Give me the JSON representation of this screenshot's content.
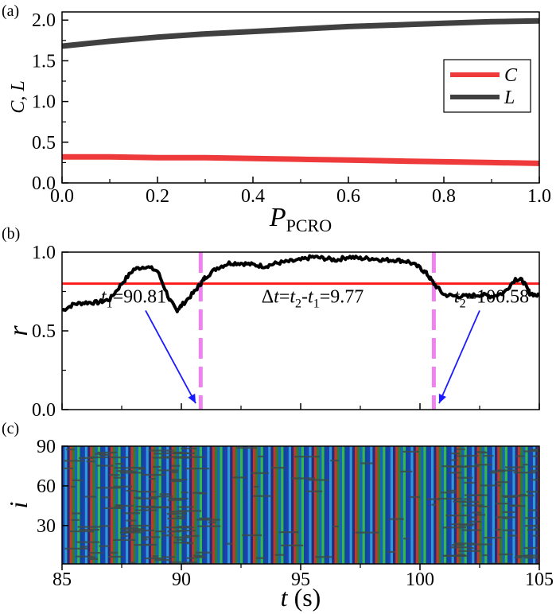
{
  "panels": {
    "a": {
      "label": "(a)",
      "chart_data": {
        "type": "line",
        "xlabel": {
          "main": "P",
          "sub": "PCRO"
        },
        "ylabel": "C, L",
        "xlim": [
          0.0,
          1.0
        ],
        "ylim": [
          0.0,
          2.1
        ],
        "xticks": [
          "0.0",
          "0.2",
          "0.4",
          "0.6",
          "0.8",
          "1.0"
        ],
        "yticks": [
          "0.0",
          "0.5",
          "1.0",
          "1.5",
          "2.0"
        ],
        "legend_position": "right",
        "series": [
          {
            "name": "C",
            "color": "#ee3a3a",
            "x": [
              0.0,
              0.1,
              0.2,
              0.3,
              0.4,
              0.5,
              0.6,
              0.7,
              0.8,
              0.9,
              1.0
            ],
            "y": [
              0.32,
              0.32,
              0.31,
              0.31,
              0.3,
              0.29,
              0.28,
              0.27,
              0.26,
              0.25,
              0.24
            ]
          },
          {
            "name": "L",
            "color": "#404040",
            "x": [
              0.0,
              0.1,
              0.2,
              0.3,
              0.4,
              0.5,
              0.6,
              0.7,
              0.8,
              0.9,
              1.0
            ],
            "y": [
              1.68,
              1.74,
              1.79,
              1.83,
              1.86,
              1.89,
              1.92,
              1.94,
              1.96,
              1.98,
              1.99
            ]
          }
        ]
      }
    },
    "b": {
      "label": "(b)",
      "chart_data": {
        "type": "line",
        "ylabel": "r",
        "xlim": [
          85,
          105
        ],
        "ylim": [
          0.0,
          1.0
        ],
        "yticks": [
          "0.0",
          "0.5",
          "1.0"
        ],
        "threshold": {
          "value": 0.8,
          "color": "#ff1a1a"
        },
        "vlines": [
          {
            "x": 90.81,
            "color": "#ee82ee"
          },
          {
            "x": 100.58,
            "color": "#ee82ee"
          }
        ],
        "series": [
          {
            "color": "#000000",
            "x": [
              85,
              85.5,
              86,
              86.5,
              87,
              87.5,
              88,
              88.5,
              89,
              89.5,
              89.8,
              90,
              90.5,
              90.81,
              91,
              91.5,
              92,
              92.5,
              93,
              93.5,
              94,
              94.5,
              95,
              95.5,
              96,
              96.5,
              97,
              97.5,
              98,
              98.5,
              99,
              99.5,
              100,
              100.3,
              100.58,
              101,
              101.5,
              102,
              102.5,
              103,
              103.5,
              104,
              104.3,
              104.6,
              105
            ],
            "y": [
              0.63,
              0.67,
              0.68,
              0.68,
              0.7,
              0.8,
              0.89,
              0.91,
              0.88,
              0.7,
              0.63,
              0.66,
              0.74,
              0.8,
              0.84,
              0.9,
              0.93,
              0.93,
              0.92,
              0.91,
              0.93,
              0.94,
              0.95,
              0.97,
              0.96,
              0.95,
              0.97,
              0.96,
              0.96,
              0.95,
              0.95,
              0.94,
              0.9,
              0.86,
              0.8,
              0.73,
              0.72,
              0.72,
              0.73,
              0.72,
              0.74,
              0.83,
              0.82,
              0.74,
              0.72
            ]
          }
        ],
        "annotations": [
          {
            "parts": [
              {
                "t": "t",
                "style": "italic"
              },
              {
                "t": "1",
                "style": "sub"
              },
              {
                "t": "=90.81",
                "style": "normal"
              }
            ],
            "x": 88.0,
            "y": 0.72,
            "arrow_to": [
              90.6,
              0.04
            ]
          },
          {
            "parts": [
              {
                "t": "Δ",
                "style": "normal"
              },
              {
                "t": "t",
                "style": "italic"
              },
              {
                "t": "=",
                "style": "normal"
              },
              {
                "t": "t",
                "style": "italic"
              },
              {
                "t": "2",
                "style": "sub"
              },
              {
                "t": "-",
                "style": "normal"
              },
              {
                "t": "t",
                "style": "italic"
              },
              {
                "t": "1",
                "style": "sub"
              },
              {
                "t": "=9.77",
                "style": "normal"
              }
            ],
            "x": 95.5,
            "y": 0.72
          },
          {
            "parts": [
              {
                "t": "t",
                "style": "italic"
              },
              {
                "t": "2",
                "style": "sub"
              },
              {
                "t": "=100.58",
                "style": "normal"
              }
            ],
            "x": 103.0,
            "y": 0.72,
            "arrow_to": [
              100.8,
              0.04
            ]
          }
        ]
      }
    },
    "c": {
      "label": "(c)",
      "chart_data": {
        "type": "heatmap",
        "xlabel": {
          "var": "t",
          "unit": "(s)"
        },
        "ylabel": "i",
        "xlim": [
          85,
          105
        ],
        "ylim": [
          1,
          90
        ],
        "xticks": [
          "85",
          "90",
          "95",
          "100",
          "105"
        ],
        "yticks": [
          "30",
          "60",
          "90"
        ],
        "stripe_colors": [
          "#1f3fae",
          "#2a9ad8",
          "#2a2a7a",
          "#c0392b",
          "#2e7d32",
          "#1565c0",
          "#39b54a",
          "#0d47a1"
        ],
        "defect_color": "#3d4a4a"
      }
    }
  }
}
